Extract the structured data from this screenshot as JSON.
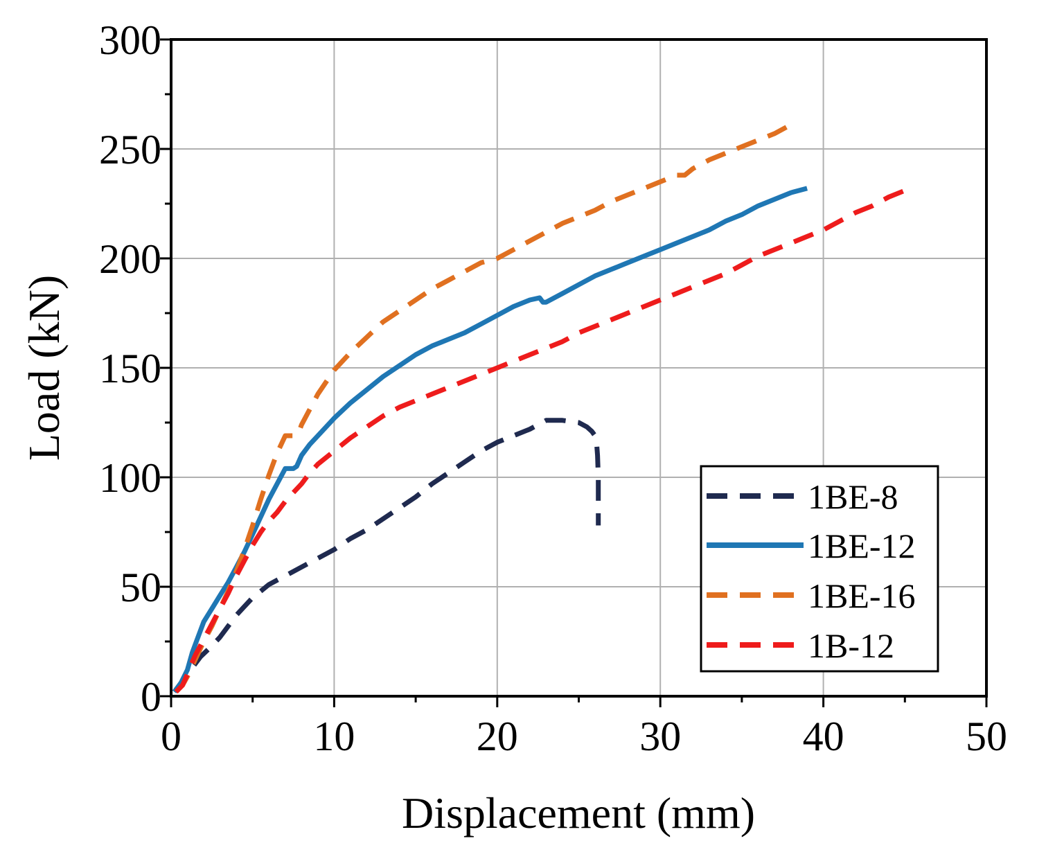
{
  "chart_data": {
    "type": "line",
    "title": "",
    "xlabel": "Displacement (mm)",
    "ylabel": "Load (kN)",
    "xlim": [
      0,
      50
    ],
    "ylim": [
      0,
      300
    ],
    "xticks": [
      0,
      10,
      20,
      30,
      40,
      50
    ],
    "yticks": [
      0,
      50,
      100,
      150,
      200,
      250,
      300
    ],
    "xtick_labels": [
      "0",
      "10",
      "20",
      "30",
      "40",
      "50"
    ],
    "ytick_labels": [
      "0",
      "50",
      "100",
      "150",
      "200",
      "250",
      "300"
    ],
    "grid": true,
    "legend_position": "bottom-right",
    "series": [
      {
        "name": "1BE-8",
        "color": "#1f2a4f",
        "dash": "dash",
        "x": [
          0.2,
          0.6,
          1.0,
          1.3,
          1.8,
          2.5,
          3.0,
          3.5,
          4.0,
          4.5,
          5.0,
          5.5,
          6.0,
          7.0,
          8.0,
          9.0,
          10.0,
          11.0,
          12.0,
          13.0,
          14.0,
          15.0,
          16.0,
          17.0,
          18.0,
          19.0,
          20.0,
          21.0,
          22.0,
          23.0,
          24.0,
          25.0,
          25.5,
          25.8,
          26.0,
          26.1,
          26.15,
          26.2,
          26.2,
          26.2,
          26.2
        ],
        "y": [
          2,
          6,
          10,
          13,
          18,
          23,
          27,
          32,
          37,
          41,
          45,
          48,
          51,
          55,
          59,
          63,
          67,
          72,
          76,
          81,
          86,
          91,
          97,
          102,
          107,
          112,
          116,
          119,
          122,
          126,
          126,
          125,
          123,
          121,
          119,
          115,
          110,
          100,
          90,
          82,
          78
        ]
      },
      {
        "name": "1BE-12",
        "color": "#1f77b4",
        "dash": "solid",
        "x": [
          0.2,
          0.6,
          1.0,
          1.3,
          1.5,
          2.0,
          2.5,
          3.0,
          3.5,
          4.0,
          4.5,
          5.0,
          5.5,
          6.0,
          6.5,
          7.0,
          7.5,
          7.7,
          8.0,
          8.5,
          9.0,
          10.0,
          11.0,
          12.0,
          13.0,
          14.0,
          15.0,
          16.0,
          17.0,
          18.0,
          19.0,
          20.0,
          21.0,
          22.0,
          22.6,
          22.8,
          23.0,
          24.0,
          25.0,
          26.0,
          27.0,
          28.0,
          29.0,
          30.0,
          31.0,
          32.0,
          33.0,
          34.0,
          35.0,
          36.0,
          37.0,
          38.0,
          39.0
        ],
        "y": [
          2,
          6,
          12,
          20,
          24,
          34,
          40,
          46,
          52,
          59,
          66,
          74,
          82,
          90,
          97,
          104,
          104,
          105,
          110,
          115,
          119,
          127,
          134,
          140,
          146,
          151,
          156,
          160,
          163,
          166,
          170,
          174,
          178,
          181,
          182,
          180,
          180,
          184,
          188,
          192,
          195,
          198,
          201,
          204,
          207,
          210,
          213,
          217,
          220,
          224,
          227,
          230,
          232
        ]
      },
      {
        "name": "1BE-16",
        "color": "#e07020",
        "dash": "dash",
        "x": [
          0.3,
          0.7,
          1.0,
          1.5,
          2.0,
          2.5,
          3.0,
          3.5,
          4.0,
          4.5,
          5.0,
          5.5,
          6.0,
          6.5,
          7.0,
          7.5,
          7.8,
          8.0,
          8.5,
          9.0,
          10.0,
          11.0,
          12.0,
          13.0,
          14.0,
          15.0,
          16.0,
          17.0,
          18.0,
          19.0,
          19.5,
          20.0,
          21.0,
          22.0,
          23.0,
          24.0,
          25.0,
          26.0,
          27.0,
          28.0,
          29.0,
          30.0,
          31.0,
          31.5,
          32.0,
          33.0,
          34.0,
          35.0,
          36.0,
          37.0,
          38.0
        ],
        "y": [
          2,
          5,
          9,
          17,
          25,
          32,
          40,
          48,
          57,
          67,
          78,
          90,
          101,
          111,
          119,
          119,
          120,
          124,
          131,
          138,
          149,
          157,
          164,
          171,
          176,
          181,
          186,
          190,
          194,
          198,
          199,
          200,
          204,
          208,
          212,
          216,
          219,
          222,
          226,
          229,
          232,
          235,
          238,
          238,
          241,
          245,
          248,
          251,
          254,
          257,
          261
        ]
      },
      {
        "name": "1B-12",
        "color": "#ee1c1c",
        "dash": "dash",
        "x": [
          0.3,
          0.7,
          1.0,
          1.2,
          1.5,
          2.0,
          2.5,
          3.0,
          3.5,
          4.0,
          4.5,
          5.0,
          5.5,
          6.0,
          6.5,
          7.0,
          7.5,
          8.0,
          8.5,
          9.0,
          10.0,
          11.0,
          12.0,
          13.0,
          14.0,
          15.0,
          16.0,
          17.0,
          18.0,
          19.0,
          20.0,
          21.0,
          22.0,
          23.0,
          24.0,
          25.0,
          26.0,
          27.0,
          28.0,
          29.0,
          30.0,
          31.0,
          32.0,
          33.0,
          34.0,
          35.0,
          36.0,
          37.0,
          38.0,
          39.0,
          40.0,
          41.0,
          42.0,
          43.0,
          44.0,
          45.0
        ],
        "y": [
          2,
          5,
          10,
          14,
          19,
          26,
          33,
          40,
          47,
          55,
          62,
          69,
          75,
          80,
          84,
          89,
          93,
          97,
          102,
          106,
          112,
          118,
          123,
          128,
          132,
          135,
          138,
          141,
          144,
          147,
          150,
          153,
          156,
          159,
          162,
          166,
          169,
          172,
          175,
          178,
          181,
          184,
          187,
          190,
          193,
          197,
          201,
          204,
          207,
          210,
          213,
          217,
          221,
          224,
          228,
          231
        ]
      }
    ]
  }
}
